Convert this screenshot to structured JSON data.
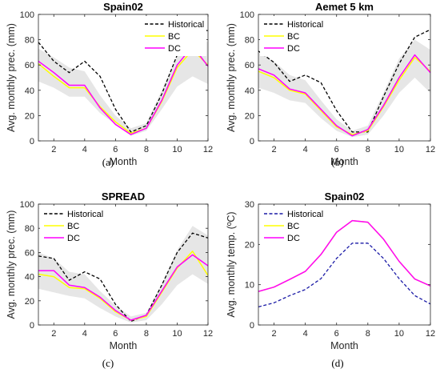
{
  "colors": {
    "historical": "#000000",
    "historical_temp": "#1a1aa6",
    "bc": "#ffff00",
    "dc": "#ff00ff",
    "band": "#e6e6e6",
    "axis": "#262626"
  },
  "chart_data": [
    {
      "tag": "(a)",
      "type": "line",
      "title": "Spain02",
      "xlabel": "Month",
      "ylabel": "Avg. monthly prec. (mm)",
      "xlim": [
        1,
        12
      ],
      "ylim": [
        0,
        100
      ],
      "xticks": [
        2,
        4,
        6,
        8,
        10,
        12
      ],
      "yticks": [
        0,
        20,
        40,
        60,
        80,
        100
      ],
      "x": [
        1,
        2,
        3,
        4,
        5,
        6,
        7,
        8,
        9,
        10,
        11,
        12
      ],
      "band": {
        "low": [
          47,
          42,
          35,
          35,
          22,
          13,
          4,
          8,
          25,
          43,
          51,
          45
        ],
        "high": [
          73,
          66,
          58,
          55,
          36,
          20,
          10,
          14,
          40,
          68,
          87,
          78
        ]
      },
      "legend": "top-right",
      "series": [
        {
          "name": "Historical",
          "key": "historical",
          "dash": true,
          "values": [
            78,
            63,
            54,
            63,
            51,
            25,
            7,
            12,
            37,
            68,
            90,
            87
          ]
        },
        {
          "name": "BC",
          "key": "bc",
          "dash": false,
          "values": [
            61,
            51,
            42,
            42,
            27,
            15,
            6,
            10,
            31,
            58,
            72,
            60
          ]
        },
        {
          "name": "DC",
          "key": "dc",
          "dash": false,
          "values": [
            63,
            54,
            44,
            44,
            26,
            13,
            5,
            10,
            32,
            60,
            75,
            59
          ]
        }
      ]
    },
    {
      "tag": "(b)",
      "type": "line",
      "title": "Aemet 5 km",
      "xlabel": "Month",
      "ylabel": "Avg. monthly prec. (mm)",
      "xlim": [
        1,
        12
      ],
      "ylim": [
        0,
        100
      ],
      "xticks": [
        2,
        4,
        6,
        8,
        10,
        12
      ],
      "yticks": [
        0,
        20,
        40,
        60,
        80,
        100
      ],
      "x": [
        1,
        2,
        3,
        4,
        5,
        6,
        7,
        8,
        9,
        10,
        11,
        12
      ],
      "band": {
        "low": [
          42,
          38,
          32,
          30,
          18,
          8,
          3,
          5,
          20,
          38,
          50,
          38
        ],
        "high": [
          70,
          63,
          52,
          48,
          32,
          17,
          8,
          12,
          38,
          65,
          80,
          72
        ]
      },
      "legend": "top-left",
      "series": [
        {
          "name": "Historical",
          "key": "historical",
          "dash": true,
          "values": [
            71,
            62,
            47,
            52,
            46,
            24,
            7,
            7,
            35,
            61,
            82,
            88
          ]
        },
        {
          "name": "BC",
          "key": "bc",
          "dash": false,
          "values": [
            55,
            50,
            40,
            37,
            24,
            11,
            5,
            8,
            27,
            48,
            66,
            55
          ]
        },
        {
          "name": "DC",
          "key": "dc",
          "dash": false,
          "values": [
            57,
            52,
            41,
            38,
            25,
            12,
            4,
            9,
            28,
            50,
            68,
            54
          ]
        }
      ]
    },
    {
      "tag": "(c)",
      "type": "line",
      "title": "SPREAD",
      "xlabel": "Month",
      "ylabel": "Avg. monthly prec. (mm)",
      "xlim": [
        1,
        12
      ],
      "ylim": [
        0,
        100
      ],
      "xticks": [
        2,
        4,
        6,
        8,
        10,
        12
      ],
      "yticks": [
        0,
        20,
        40,
        60,
        80,
        100
      ],
      "x": [
        1,
        2,
        3,
        4,
        5,
        6,
        7,
        8,
        9,
        10,
        11,
        12
      ],
      "band": {
        "low": [
          30,
          27,
          24,
          22,
          14,
          7,
          2,
          4,
          17,
          33,
          42,
          34
        ],
        "high": [
          60,
          55,
          44,
          42,
          28,
          16,
          7,
          10,
          34,
          62,
          82,
          74
        ]
      },
      "legend": "top-left",
      "series": [
        {
          "name": "Historical",
          "key": "historical",
          "dash": true,
          "values": [
            57,
            55,
            37,
            44,
            38,
            17,
            3,
            8,
            33,
            60,
            76,
            72
          ]
        },
        {
          "name": "BC",
          "key": "bc",
          "dash": false,
          "values": [
            42,
            40,
            31,
            30,
            22,
            11,
            4,
            7,
            27,
            47,
            61,
            41
          ]
        },
        {
          "name": "DC",
          "key": "dc",
          "dash": false,
          "values": [
            45,
            45,
            33,
            31,
            23,
            12,
            4,
            8,
            28,
            48,
            58,
            49
          ]
        }
      ]
    },
    {
      "tag": "(d)",
      "type": "line",
      "title": "Spain02",
      "xlabel": "Month",
      "ylabel": "Avg. monthly temp. (ºC)",
      "xlim": [
        1,
        12
      ],
      "ylim": [
        0,
        30
      ],
      "xticks": [
        2,
        4,
        6,
        8,
        10,
        12
      ],
      "yticks": [
        0,
        10,
        20,
        30
      ],
      "x": [
        1,
        2,
        3,
        4,
        5,
        6,
        7,
        8,
        9,
        10,
        11,
        12
      ],
      "band": null,
      "legend": "top-left",
      "series": [
        {
          "name": "Historical",
          "key": "historical_temp",
          "dash": true,
          "values": [
            4.5,
            5.5,
            7.3,
            8.8,
            11.5,
            16.5,
            20.3,
            20.3,
            16.5,
            11.5,
            7.3,
            5.2
          ]
        },
        {
          "name": "BC",
          "key": "bc",
          "dash": false,
          "values": [
            8.3,
            9.4,
            11.3,
            13.3,
            17.5,
            23.0,
            25.9,
            25.5,
            21.3,
            15.8,
            11.4,
            9.7
          ]
        },
        {
          "name": "DC",
          "key": "dc",
          "dash": false,
          "values": [
            8.3,
            9.4,
            11.3,
            13.3,
            17.5,
            23.0,
            25.9,
            25.5,
            21.3,
            15.8,
            11.4,
            9.7
          ]
        }
      ]
    }
  ]
}
